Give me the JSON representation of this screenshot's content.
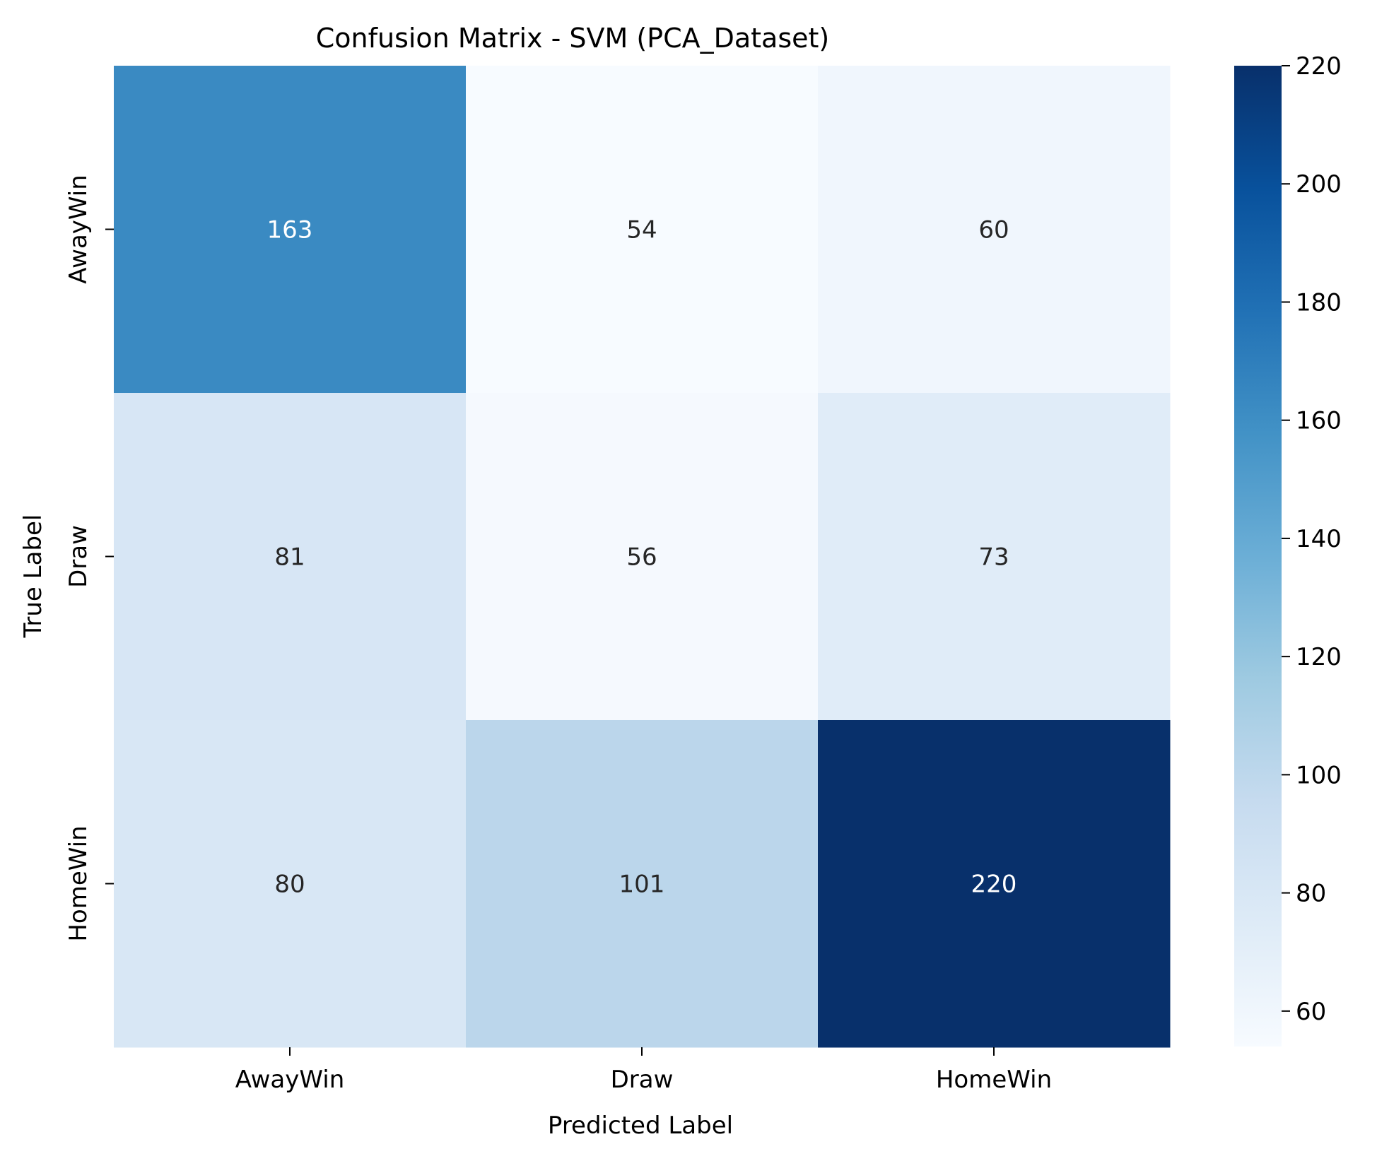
{
  "chart_data": {
    "type": "heatmap",
    "title": "Confusion Matrix - SVM (PCA_Dataset)",
    "xlabel": "Predicted Label",
    "ylabel": "True Label",
    "x_categories": [
      "AwayWin",
      "Draw",
      "HomeWin"
    ],
    "y_categories": [
      "AwayWin",
      "Draw",
      "HomeWin"
    ],
    "values": [
      [
        163,
        54,
        60
      ],
      [
        81,
        56,
        73
      ],
      [
        80,
        101,
        220
      ]
    ],
    "color_range": [
      54,
      220
    ],
    "colorbar_ticks": [
      60,
      80,
      100,
      120,
      140,
      160,
      180,
      200,
      220
    ],
    "colormap": [
      "#f7fbff",
      "#deebf7",
      "#c6dbef",
      "#9ecae1",
      "#6baed6",
      "#4292c6",
      "#2171b5",
      "#08519c",
      "#08306b"
    ],
    "annotation_text_colors": {
      "light": "#262626",
      "dark": "#ffffff"
    },
    "grid": false,
    "colorbar_position": "right"
  }
}
